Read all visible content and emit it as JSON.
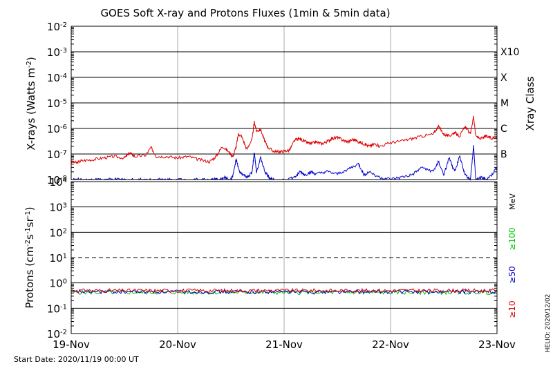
{
  "chart_data": {
    "type": "line",
    "title": "GOES Soft X-ray and Protons Fluxes   (1min & 5min data)",
    "start_date": "Start Date: 2020/11/19 00:00 UT",
    "helio_stamp": "HELIO: 2020/12/02",
    "x_axis": {
      "range_days": [
        0,
        4
      ],
      "tick_labels": [
        "19-Nov",
        "20-Nov",
        "21-Nov",
        "22-Nov",
        "23-Nov"
      ],
      "tick_days": [
        0,
        1,
        2,
        3,
        4
      ]
    },
    "xray_panel": {
      "ylabel": "X-rays (Watts m^-2)",
      "ylabel_base": "X-rays (Watts m",
      "ylabel_sup": "-2",
      "ylabel_end": ")",
      "yscale": "log",
      "ylim": [
        1e-08,
        0.01
      ],
      "tick_exponents": [
        -2,
        -3,
        -4,
        -5,
        -6,
        -7,
        -8
      ],
      "class_title": "Xray Class",
      "classes": [
        {
          "label": "X10",
          "flux": 0.001
        },
        {
          "label": "X",
          "flux": 0.0001
        },
        {
          "label": "M",
          "flux": 1e-05
        },
        {
          "label": "C",
          "flux": 1e-06
        },
        {
          "label": "B",
          "flux": 1e-07
        }
      ],
      "series": [
        {
          "color": "#dd0000",
          "x": [
            0,
            0.05,
            0.1,
            0.2,
            0.3,
            0.4,
            0.5,
            0.55,
            0.6,
            0.7,
            0.75,
            0.8,
            0.9,
            1.0,
            1.1,
            1.2,
            1.3,
            1.36,
            1.42,
            1.48,
            1.52,
            1.55,
            1.57,
            1.6,
            1.65,
            1.7,
            1.72,
            1.74,
            1.78,
            1.82,
            1.85,
            1.9,
            1.95,
            2.0,
            2.05,
            2.1,
            2.15,
            2.2,
            2.25,
            2.3,
            2.35,
            2.4,
            2.45,
            2.5,
            2.55,
            2.6,
            2.65,
            2.7,
            2.75,
            2.8,
            2.85,
            2.9,
            3.0,
            3.1,
            3.2,
            3.3,
            3.4,
            3.45,
            3.5,
            3.55,
            3.6,
            3.65,
            3.7,
            3.75,
            3.78,
            3.8,
            3.85,
            3.9,
            3.95,
            4.0
          ],
          "y": [
            5e-08,
            4.5e-08,
            5.5e-08,
            6e-08,
            7e-08,
            8e-08,
            7e-08,
            1.1e-07,
            8e-08,
            9e-08,
            1.8e-07,
            8e-08,
            8e-08,
            7e-08,
            8e-08,
            6e-08,
            5e-08,
            8e-08,
            2e-07,
            1.2e-07,
            8e-08,
            2e-07,
            6e-07,
            5e-07,
            1.5e-07,
            4e-07,
            1.8e-06,
            8e-07,
            9e-07,
            3e-07,
            1.8e-07,
            1.3e-07,
            1.2e-07,
            1.3e-07,
            1.4e-07,
            3.5e-07,
            4e-07,
            3e-07,
            2.5e-07,
            3e-07,
            2.5e-07,
            3e-07,
            4e-07,
            4.5e-07,
            3.5e-07,
            3e-07,
            3.8e-07,
            3e-07,
            2.5e-07,
            2e-07,
            2.5e-07,
            2e-07,
            2.8e-07,
            3.2e-07,
            4e-07,
            5e-07,
            6e-07,
            1.2e-06,
            6e-07,
            5e-07,
            7e-07,
            5e-07,
            1.2e-06,
            6e-07,
            3e-06,
            5e-07,
            4e-07,
            5e-07,
            4e-07,
            5e-07
          ]
        },
        {
          "color": "#0000cc",
          "x": [
            0,
            0.1,
            0.2,
            0.3,
            0.4,
            0.5,
            0.6,
            0.7,
            0.8,
            0.9,
            1.0,
            1.1,
            1.2,
            1.3,
            1.35,
            1.4,
            1.45,
            1.5,
            1.52,
            1.55,
            1.58,
            1.62,
            1.66,
            1.7,
            1.72,
            1.74,
            1.78,
            1.82,
            1.86,
            1.9,
            2.0,
            2.1,
            2.15,
            2.2,
            2.25,
            2.3,
            2.4,
            2.5,
            2.6,
            2.7,
            2.75,
            2.8,
            2.9,
            3.0,
            3.1,
            3.2,
            3.3,
            3.4,
            3.45,
            3.5,
            3.55,
            3.6,
            3.65,
            3.7,
            3.75,
            3.78,
            3.8,
            3.85,
            3.9,
            3.95,
            4.0
          ],
          "y": [
            1e-08,
            1e-08,
            1e-08,
            1e-08,
            1e-08,
            1e-08,
            1e-08,
            1e-08,
            1e-08,
            1e-08,
            1e-08,
            1e-08,
            1e-08,
            1e-08,
            1e-08,
            1e-08,
            1.2e-08,
            1e-08,
            1.5e-08,
            6e-08,
            2e-08,
            1.5e-08,
            1.2e-08,
            2e-08,
            1.2e-07,
            2e-08,
            7e-08,
            2e-08,
            1.2e-08,
            1e-08,
            1e-08,
            1.2e-08,
            2e-08,
            1.5e-08,
            2e-08,
            1.6e-08,
            2e-08,
            1.6e-08,
            2.5e-08,
            4e-08,
            1.5e-08,
            2e-08,
            1.2e-08,
            1e-08,
            1.2e-08,
            1.5e-08,
            3e-08,
            2e-08,
            5e-08,
            1.5e-08,
            7e-08,
            2e-08,
            8e-08,
            1.5e-08,
            1e-08,
            2e-07,
            1e-08,
            1.2e-08,
            1e-08,
            1.5e-08,
            3e-08
          ]
        }
      ]
    },
    "proton_panel": {
      "ylabel_parts": [
        "Protons (cm",
        "-2",
        "s",
        "-1",
        "sr",
        "-1",
        ")"
      ],
      "yscale": "log",
      "ylim": [
        0.01,
        10000
      ],
      "tick_exponents": [
        4,
        3,
        2,
        1,
        0,
        -1,
        -2
      ],
      "threshold_flux": 10,
      "units_label": "MeV",
      "series": [
        {
          "name": "≥100",
          "color": "#00cc00",
          "base": 0.42
        },
        {
          "name": "≥50",
          "color": "#0000cc",
          "base": 0.45
        },
        {
          "name": "≥10",
          "color": "#dd0000",
          "base": 0.5
        }
      ]
    }
  }
}
